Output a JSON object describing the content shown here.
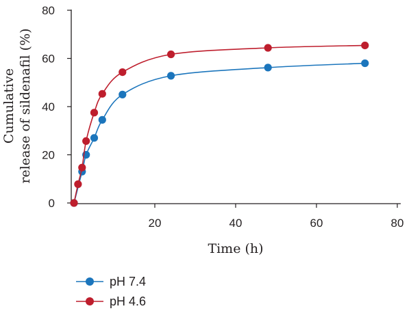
{
  "chart_data": {
    "type": "line",
    "xlabel": "Time (h)",
    "ylabel_lines": [
      "Cumulative",
      "release of sildenafil (%)"
    ],
    "xlim": [
      0,
      80
    ],
    "ylim": [
      0,
      80
    ],
    "x_ticks": [
      20,
      40,
      60,
      80
    ],
    "y_ticks": [
      0,
      20,
      40,
      60,
      80
    ],
    "grid": false,
    "legend_position": "bottom-left",
    "series": [
      {
        "name": "pH 7.4",
        "color": "#1b75bc",
        "x": [
          0,
          2,
          3,
          5,
          7,
          12,
          24,
          48,
          72
        ],
        "y": [
          0,
          13,
          20,
          27,
          34.5,
          45,
          52.8,
          56.2,
          58
        ]
      },
      {
        "name": "pH 4.6",
        "color": "#be1e2d",
        "x": [
          0,
          1,
          2,
          3,
          5,
          7,
          12,
          24,
          48,
          72
        ],
        "y": [
          0,
          7.8,
          14.7,
          25.7,
          37.5,
          45.3,
          54.3,
          61.7,
          64.4,
          65.4
        ]
      }
    ]
  }
}
